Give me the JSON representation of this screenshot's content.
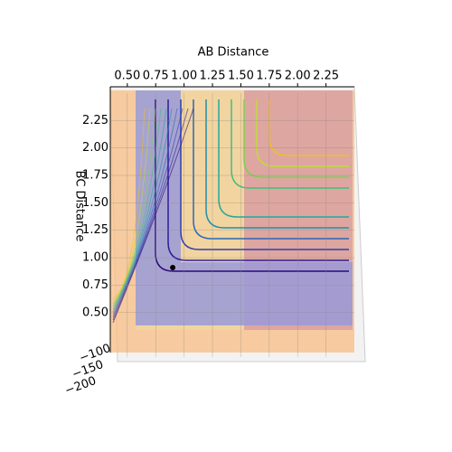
{
  "chart_data": {
    "type": "surface",
    "xlabel": "AB Distance",
    "ylabel": "BC Distance",
    "xlim": [
      0.35,
      2.5
    ],
    "ylim": [
      0.35,
      2.5
    ],
    "xticks": [
      {
        "value": 0.5,
        "label": "0.50"
      },
      0.75,
      {
        "value": 1.0,
        "label": "1.00"
      },
      1.25,
      {
        "value": 1.5,
        "label": "1.50"
      },
      1.75,
      {
        "value": 2.0,
        "label": "2.00"
      },
      2.25
    ],
    "yticks": [
      {
        "value": 0.5,
        "label": "0.50"
      },
      0.75,
      {
        "value": 1.0,
        "label": "1.00"
      },
      1.25,
      {
        "value": 1.5,
        "label": "1.50"
      },
      1.75,
      {
        "value": 2.0,
        "label": "2.00"
      },
      2.25
    ],
    "zticks": [
      {
        "value": -100,
        "label": "−100"
      },
      {
        "value": -150,
        "label": "−150"
      },
      {
        "value": -200,
        "label": "−200"
      }
    ],
    "points": {
      "x": [
        0.9
      ],
      "y": [
        0.91
      ],
      "color": "#000000"
    }
  }
}
